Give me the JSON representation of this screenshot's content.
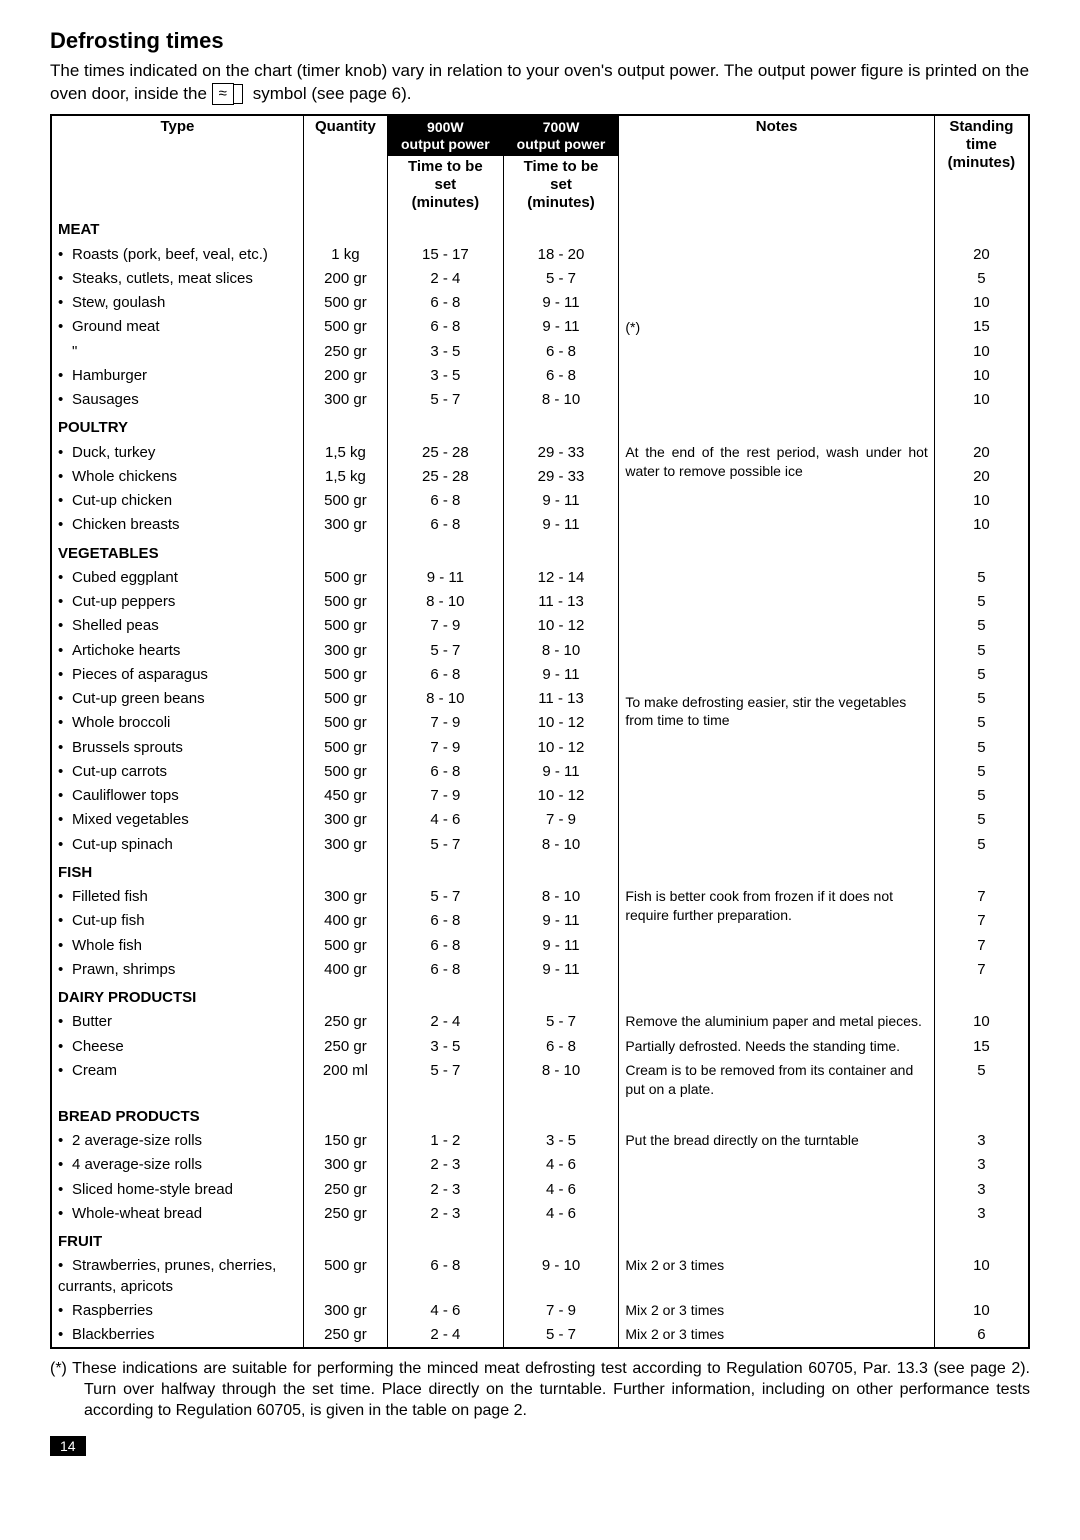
{
  "heading": "Defrosting times",
  "intro_pre": "The times indicated on the chart (timer knob) vary in relation to your oven's output power. The output power figure is printed on the oven door, inside the ",
  "intro_symbol": "≈",
  "intro_post": " symbol (see page 6).",
  "headers": {
    "type": "Type",
    "qty": "Quantity",
    "pw900_top": "900W\noutput power",
    "pw700_top": "700W\noutput power",
    "time_set": "Time to be\nset\n(minutes)",
    "notes": "Notes",
    "standing": "Standing\ntime\n(minutes)"
  },
  "sections": [
    {
      "title": "MEAT",
      "note": "(*)",
      "note_align": "middle",
      "rows": [
        {
          "type": "Roasts (pork, beef, veal, etc.)",
          "qty": "1 kg",
          "t1": "15 - 17",
          "t2": "18 - 20",
          "stand": "20"
        },
        {
          "type": "Steaks, cutlets, meat slices",
          "qty": "200 gr",
          "t1": "2 - 4",
          "t2": "5 - 7",
          "stand": "5"
        },
        {
          "type": "Stew, goulash",
          "qty": "500 gr",
          "t1": "6 - 8",
          "t2": "9 - 11",
          "stand": "10"
        },
        {
          "type": "Ground meat",
          "qty": "500 gr",
          "t1": "6 - 8",
          "t2": "9 - 11",
          "stand": "15"
        },
        {
          "type": "\"",
          "qty": "250 gr",
          "t1": "3 - 5",
          "t2": "6 - 8",
          "stand": "10",
          "nobullet": true
        },
        {
          "type": "Hamburger",
          "qty": "200 gr",
          "t1": "3 - 5",
          "t2": "6 - 8",
          "stand": "10"
        },
        {
          "type": "Sausages",
          "qty": "300 gr",
          "t1": "5 - 7",
          "t2": "8 - 10",
          "stand": "10"
        }
      ]
    },
    {
      "title": "POULTRY",
      "note": "At the end of the rest period, wash under hot water to remove possible ice",
      "note_align": "top",
      "note_justify": true,
      "rows": [
        {
          "type": "Duck, turkey",
          "qty": "1,5 kg",
          "t1": "25 - 28",
          "t2": "29 - 33",
          "stand": "20"
        },
        {
          "type": "Whole chickens",
          "qty": "1,5 kg",
          "t1": "25 - 28",
          "t2": "29 - 33",
          "stand": "20"
        },
        {
          "type": "Cut-up chicken",
          "qty": "500 gr",
          "t1": "6 - 8",
          "t2": "9 - 11",
          "stand": "10"
        },
        {
          "type": "Chicken breasts",
          "qty": "300 gr",
          "t1": "6 - 8",
          "t2": "9 - 11",
          "stand": "10"
        }
      ]
    },
    {
      "title": "VEGETABLES",
      "note": "To make defrosting easier, stir the vegetables from time to time",
      "note_align": "middle",
      "rows": [
        {
          "type": "Cubed eggplant",
          "qty": "500 gr",
          "t1": "9 - 11",
          "t2": "12 - 14",
          "stand": "5"
        },
        {
          "type": "Cut-up peppers",
          "qty": "500 gr",
          "t1": "8 - 10",
          "t2": "11 - 13",
          "stand": "5"
        },
        {
          "type": "Shelled peas",
          "qty": "500 gr",
          "t1": "7 - 9",
          "t2": "10 - 12",
          "stand": "5"
        },
        {
          "type": "Artichoke hearts",
          "qty": "300 gr",
          "t1": "5 - 7",
          "t2": "8 - 10",
          "stand": "5"
        },
        {
          "type": "Pieces of asparagus",
          "qty": "500 gr",
          "t1": "6 - 8",
          "t2": "9 - 11",
          "stand": "5"
        },
        {
          "type": "Cut-up green beans",
          "qty": "500 gr",
          "t1": "8 - 10",
          "t2": "11 - 13",
          "stand": "5"
        },
        {
          "type": "Whole broccoli",
          "qty": "500 gr",
          "t1": "7 - 9",
          "t2": "10 - 12",
          "stand": "5"
        },
        {
          "type": "Brussels sprouts",
          "qty": "500 gr",
          "t1": "7 - 9",
          "t2": "10 - 12",
          "stand": "5"
        },
        {
          "type": "Cut-up carrots",
          "qty": "500 gr",
          "t1": "6 - 8",
          "t2": "9 - 11",
          "stand": "5"
        },
        {
          "type": "Cauliflower tops",
          "qty": "450 gr",
          "t1": "7 - 9",
          "t2": "10 - 12",
          "stand": "5"
        },
        {
          "type": "Mixed vegetables",
          "qty": "300 gr",
          "t1": "4 - 6",
          "t2": "7 - 9",
          "stand": "5"
        },
        {
          "type": "Cut-up spinach",
          "qty": "300 gr",
          "t1": "5 - 7",
          "t2": "8 - 10",
          "stand": "5"
        }
      ]
    },
    {
      "title": "FISH",
      "note": "Fish is better cook from frozen if it does not require further preparation.",
      "note_align": "top",
      "rows": [
        {
          "type": "Filleted fish",
          "qty": "300 gr",
          "t1": "5 - 7",
          "t2": "8 - 10",
          "stand": "7"
        },
        {
          "type": "Cut-up fish",
          "qty": "400 gr",
          "t1": "6 - 8",
          "t2": "9 - 11",
          "stand": "7"
        },
        {
          "type": "Whole fish",
          "qty": "500 gr",
          "t1": "6 - 8",
          "t2": "9 - 11",
          "stand": "7"
        },
        {
          "type": "Prawn, shrimps",
          "qty": "400 gr",
          "t1": "6 - 8",
          "t2": "9 - 11",
          "stand": "7"
        }
      ]
    },
    {
      "title": "DAIRY PRODUCTSI",
      "per_row_notes": true,
      "rows": [
        {
          "type": "Butter",
          "qty": "250 gr",
          "t1": "2 - 4",
          "t2": "5 - 7",
          "note": "Remove the aluminium paper and metal pieces.",
          "stand": "10"
        },
        {
          "type": "Cheese",
          "qty": "250 gr",
          "t1": "3 - 5",
          "t2": "6 - 8",
          "note": "Partially defrosted. Needs the standing time.",
          "stand": "15"
        },
        {
          "type": "Cream",
          "qty": "200 ml",
          "t1": "5 - 7",
          "t2": "8 - 10",
          "note": "Cream is to be removed from its container and put on a plate.",
          "stand": "5"
        }
      ]
    },
    {
      "title": "BREAD PRODUCTS",
      "note": "Put the bread directly on the turntable",
      "note_align": "top",
      "rows": [
        {
          "type": "2 average-size rolls",
          "qty": "150 gr",
          "t1": "1 - 2",
          "t2": "3 - 5",
          "stand": "3"
        },
        {
          "type": "4 average-size rolls",
          "qty": "300 gr",
          "t1": "2 - 3",
          "t2": "4 - 6",
          "stand": "3"
        },
        {
          "type": "Sliced home-style bread",
          "qty": "250 gr",
          "t1": "2 - 3",
          "t2": "4 - 6",
          "stand": "3"
        },
        {
          "type": "Whole-wheat bread",
          "qty": "250 gr",
          "t1": "2 - 3",
          "t2": "4 - 6",
          "stand": "3"
        }
      ]
    },
    {
      "title": "FRUIT",
      "per_row_notes": true,
      "rows": [
        {
          "type": "Strawberries, prunes, cherries, currants, apricots",
          "qty": "500 gr",
          "t1": "6 - 8",
          "t2": "9 - 10",
          "note": "Mix 2 or 3 times",
          "stand": "10"
        },
        {
          "type": "Raspberries",
          "qty": "300 gr",
          "t1": "4 - 6",
          "t2": "7 - 9",
          "note": "Mix 2 or 3 times",
          "stand": "10"
        },
        {
          "type": "Blackberries",
          "qty": "250 gr",
          "t1": "2 - 4",
          "t2": "5 - 7",
          "note": "Mix 2 or 3 times",
          "stand": "6"
        }
      ]
    }
  ],
  "footnote": "(*) These indications are suitable for performing the minced meat defrosting test according to Regulation 60705, Par. 13.3 (see page  2). Turn over halfway through the set time. Place directly on the turntable. Further information, including on other performance tests according to Regulation 60705, is given in the table on page 2.",
  "page_number": "14"
}
